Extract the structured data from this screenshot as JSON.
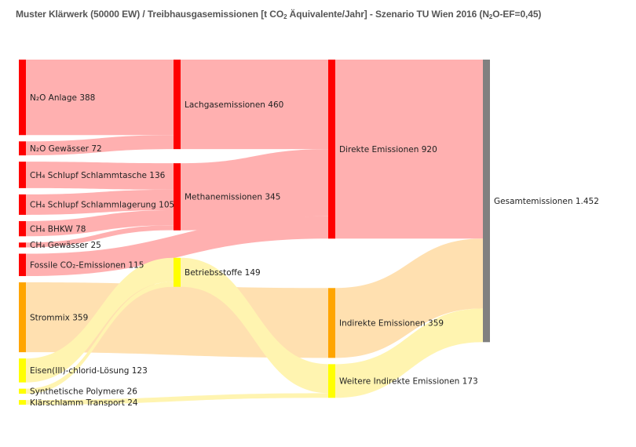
{
  "title": {
    "prefix": "Muster Klärwerk (50000 EW) / Treibhausgasemissionen [t CO",
    "sub1": "2",
    "middle": " Äquivalente/Jahr] - Szenario TU Wien 2016 (N",
    "sub2": "2",
    "suffix": "O-EF=0,45)"
  },
  "chart_data": {
    "type": "sankey",
    "title": "Muster Klärwerk (50000 EW) / Treibhausgasemissionen [t CO₂ Äquivalente/Jahr] - Szenario TU Wien 2016 (N₂O-EF=0,45)",
    "nodes": [
      {
        "id": "n2o_anlage",
        "label": "N₂O Anlage 388",
        "value": 388,
        "column": 0,
        "color": "#ff0000"
      },
      {
        "id": "n2o_gewaesser",
        "label": "N₂O Gewässer 72",
        "value": 72,
        "column": 0,
        "color": "#ff0000"
      },
      {
        "id": "ch4_schlammtasche",
        "label": "CH₄ Schlupf Schlammtasche 136",
        "value": 136,
        "column": 0,
        "color": "#ff0000"
      },
      {
        "id": "ch4_schlammlagerung",
        "label": "CH₄ Schlupf Schlammlagerung 105",
        "value": 105,
        "column": 0,
        "color": "#ff0000"
      },
      {
        "id": "ch4_bhkw",
        "label": "CH₄ BHKW 78",
        "value": 78,
        "column": 0,
        "color": "#ff0000"
      },
      {
        "id": "ch4_gewaesser",
        "label": "CH₄ Gewässer 25",
        "value": 25,
        "column": 0,
        "color": "#ff0000"
      },
      {
        "id": "fossile_co2",
        "label": "Fossile CO₂-Emissionen 115",
        "value": 115,
        "column": 0,
        "color": "#ff0000"
      },
      {
        "id": "strommix",
        "label": "Strommix 359",
        "value": 359,
        "column": 0,
        "color": "#ffa500"
      },
      {
        "id": "eisen",
        "label": "Eisen(III)-chlorid-Lösung 123",
        "value": 123,
        "column": 0,
        "color": "#ffff00"
      },
      {
        "id": "polymere",
        "label": "Synthetische Polymere 26",
        "value": 26,
        "column": 0,
        "color": "#ffff00"
      },
      {
        "id": "transport",
        "label": "Klärschlamm Transport 24",
        "value": 24,
        "column": 0,
        "color": "#ffff00"
      },
      {
        "id": "lachgas",
        "label": "Lachgasemissionen 460",
        "value": 460,
        "column": 1,
        "color": "#ff0000"
      },
      {
        "id": "methan",
        "label": "Methanemissionen 345",
        "value": 345,
        "column": 1,
        "color": "#ff0000"
      },
      {
        "id": "betriebsstoffe",
        "label": "Betriebsstoffe 149",
        "value": 149,
        "column": 1,
        "color": "#ffff00"
      },
      {
        "id": "direkte",
        "label": "Direkte Emissionen 920",
        "value": 920,
        "column": 2,
        "color": "#ff0000"
      },
      {
        "id": "indirekte",
        "label": "Indirekte Emissionen 359",
        "value": 359,
        "column": 2,
        "color": "#ffa500"
      },
      {
        "id": "weitere",
        "label": "Weitere Indirekte Emissionen 173",
        "value": 173,
        "column": 2,
        "color": "#ffff00"
      },
      {
        "id": "gesamt",
        "label": "Gesamtemissionen 1.452",
        "value": 1452,
        "column": 3,
        "color": "#808080"
      }
    ],
    "links": [
      {
        "source": "n2o_anlage",
        "target": "lachgas",
        "value": 388,
        "color": "#ffb0b0"
      },
      {
        "source": "n2o_gewaesser",
        "target": "lachgas",
        "value": 72,
        "color": "#ffb0b0"
      },
      {
        "source": "ch4_schlammtasche",
        "target": "methan",
        "value": 136,
        "color": "#ffb0b0"
      },
      {
        "source": "ch4_schlammlagerung",
        "target": "methan",
        "value": 105,
        "color": "#ffb0b0"
      },
      {
        "source": "ch4_bhkw",
        "target": "methan",
        "value": 78,
        "color": "#ffb0b0"
      },
      {
        "source": "ch4_gewaesser",
        "target": "methan",
        "value": 25,
        "color": "#ffb0b0"
      },
      {
        "source": "lachgas",
        "target": "direkte",
        "value": 460,
        "color": "#ffb0b0"
      },
      {
        "source": "methan",
        "target": "direkte",
        "value": 345,
        "color": "#ffb0b0"
      },
      {
        "source": "fossile_co2",
        "target": "direkte",
        "value": 115,
        "color": "#ffb0b0"
      },
      {
        "source": "strommix",
        "target": "indirekte",
        "value": 359,
        "color": "#ffe0b0"
      },
      {
        "source": "eisen",
        "target": "betriebsstoffe",
        "value": 123,
        "color": "#fff4b0"
      },
      {
        "source": "polymere",
        "target": "betriebsstoffe",
        "value": 26,
        "color": "#fff4b0"
      },
      {
        "source": "betriebsstoffe",
        "target": "weitere",
        "value": 149,
        "color": "#fff4b0"
      },
      {
        "source": "transport",
        "target": "weitere",
        "value": 24,
        "color": "#fff4b0"
      },
      {
        "source": "direkte",
        "target": "gesamt",
        "value": 920,
        "color": "#ffb0b0"
      },
      {
        "source": "indirekte",
        "target": "gesamt",
        "value": 359,
        "color": "#ffe0b0"
      },
      {
        "source": "weitere",
        "target": "gesamt",
        "value": 173,
        "color": "#fff4b0"
      }
    ]
  }
}
